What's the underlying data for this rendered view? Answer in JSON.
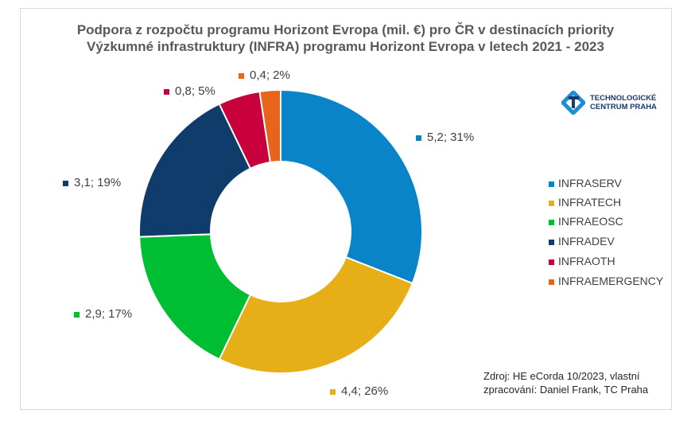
{
  "chart_data": {
    "type": "pie",
    "donut": true,
    "title_lines": [
      "Podpora z rozpočtu programu Horizont Evropa (mil. €) pro ČR v destinacích priority",
      "Výzkumné infrastruktury (INFRA) programu Horizont Evropa v letech 2021 - 2023"
    ],
    "categories": [
      "INFRASERV",
      "INFRATECH",
      "INFRAEOSC",
      "INFRADEV",
      "INFRAOTH",
      "INFRAEMERGENCY"
    ],
    "values": [
      5.2,
      4.4,
      2.9,
      3.1,
      0.8,
      0.4
    ],
    "percents": [
      31,
      26,
      17,
      19,
      5,
      2
    ],
    "labels": [
      "5,2; 31%",
      "4,4; 26%",
      "2,9; 17%",
      "3,1; 19%",
      "0,8; 5%",
      "0,4; 2%"
    ],
    "colors": [
      "#0A84C8",
      "#E6AF18",
      "#00BE32",
      "#0F3C6A",
      "#C8003C",
      "#E8641A"
    ],
    "legend_position": "right"
  },
  "source_lines": [
    "Zdroj: HE eCorda 10/2023, vlastní",
    "zpracování: Daniel Frank, TC Praha"
  ],
  "logo": {
    "line1": "TECHNOLOGICKÉ",
    "line2": "CENTRUM PRAHA"
  }
}
